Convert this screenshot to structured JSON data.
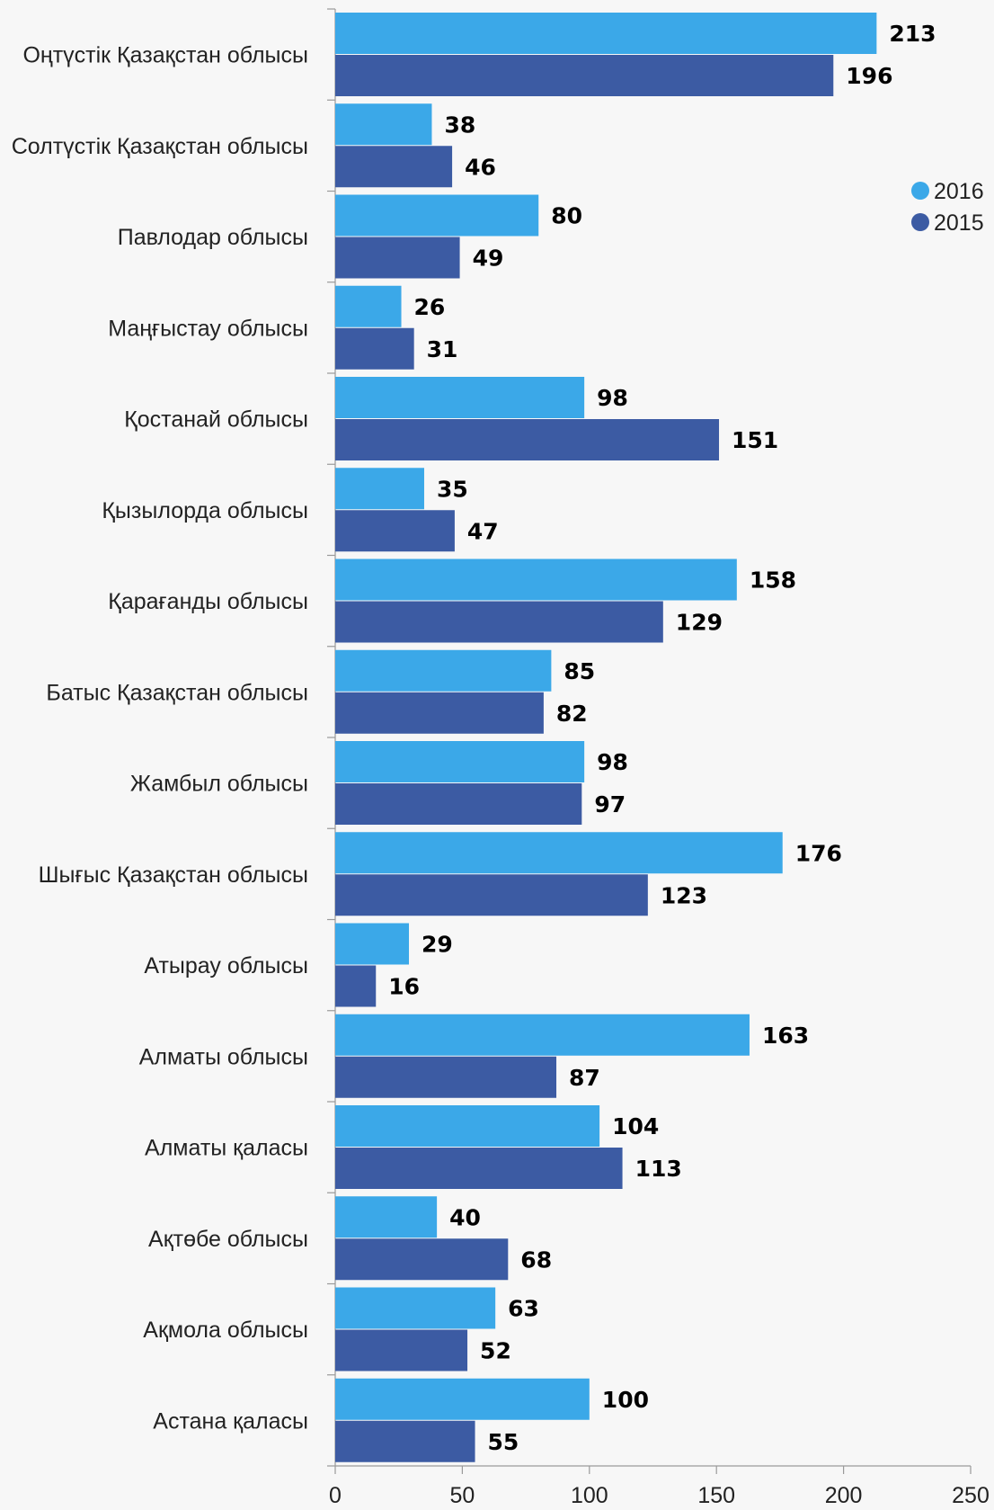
{
  "chart_data": {
    "type": "bar",
    "orientation": "horizontal",
    "categories": [
      "Оңтүстік Қазақстан облысы",
      "Солтүстік Қазақстан облысы",
      "Павлодар облысы",
      "Маңғыстау облысы",
      "Қостанай облысы",
      "Қызылорда облысы",
      "Қарағанды облысы",
      "Батыс Қазақстан облысы",
      "Жамбыл облысы",
      "Шығыс Қазақстан облысы",
      "Атырау облысы",
      "Алматы облысы",
      "Алматы қаласы",
      "Ақтөбе облысы",
      "Ақмола облысы",
      "Астана қаласы"
    ],
    "series": [
      {
        "name": "2016",
        "color": "#3ba8e8",
        "values": [
          213,
          38,
          80,
          26,
          98,
          35,
          158,
          85,
          98,
          176,
          29,
          163,
          104,
          40,
          63,
          100
        ]
      },
      {
        "name": "2015",
        "color": "#3c5ba3",
        "values": [
          196,
          46,
          49,
          31,
          151,
          47,
          129,
          82,
          97,
          123,
          16,
          87,
          113,
          68,
          52,
          55
        ]
      }
    ],
    "xlim": [
      0,
      250
    ],
    "xticks": [
      "0",
      "50",
      "100",
      "150",
      "200",
      "250"
    ],
    "legend_position": "top-right",
    "data_labels": true,
    "grid": false
  }
}
